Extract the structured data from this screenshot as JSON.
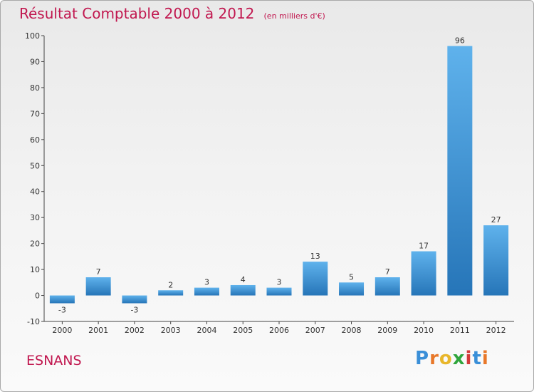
{
  "header": {
    "title": "Résultat Comptable 2000 à 2012",
    "subtitle": "(en milliers d'€)"
  },
  "commune": "ESNANS",
  "logo": {
    "letters": [
      "P",
      "r",
      "o",
      "x",
      "i",
      "t",
      "i"
    ],
    "colors": [
      "#3a8fd8",
      "#e8782a",
      "#e8b62a",
      "#2fa53c",
      "#d43a3a",
      "#3a8fd8",
      "#e8782a"
    ]
  },
  "colors": {
    "bar_top": "#5fb2ec",
    "bar_bottom": "#2675b8",
    "text": "#333333",
    "accent": "#c1174f"
  },
  "chart_data": {
    "type": "bar",
    "categories": [
      "2000",
      "2001",
      "2002",
      "2003",
      "2004",
      "2005",
      "2006",
      "2007",
      "2008",
      "2009",
      "2010",
      "2011",
      "2012"
    ],
    "values": [
      -3,
      7,
      -3,
      2,
      3,
      4,
      3,
      13,
      5,
      7,
      17,
      96,
      27
    ],
    "title": "Résultat Comptable 2000 à 2012",
    "ylim": [
      -10,
      100
    ],
    "yticks": [
      -10,
      0,
      10,
      20,
      30,
      40,
      50,
      60,
      70,
      80,
      90,
      100
    ],
    "grid": false
  }
}
